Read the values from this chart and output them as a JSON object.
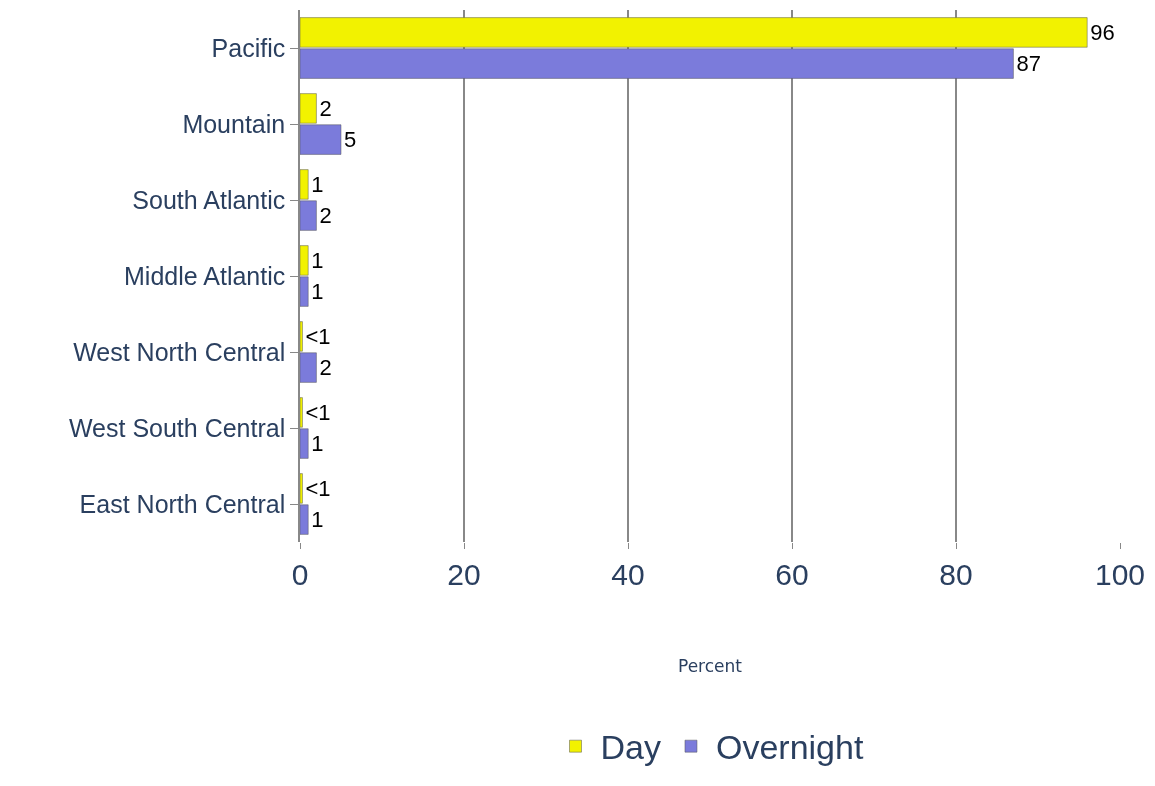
{
  "chart_data": {
    "type": "bar",
    "orientation": "horizontal",
    "xlabel": "Percent",
    "categories": [
      "Pacific",
      "Mountain",
      "South Atlantic",
      "Middle Atlantic",
      "West North Central",
      "West South Central",
      "East North Central"
    ],
    "series": [
      {
        "name": "Day",
        "color": "#f2f200",
        "values": [
          96,
          2,
          1,
          1,
          0.3,
          0.3,
          0.3
        ],
        "value_labels": [
          "96",
          "2",
          "1",
          "1",
          "<1",
          "<1",
          "<1"
        ]
      },
      {
        "name": "Overnight",
        "color": "#7b7bdb",
        "values": [
          87,
          5,
          2,
          1,
          2,
          1,
          1
        ],
        "value_labels": [
          "87",
          "5",
          "2",
          "1",
          "2",
          "1",
          "1"
        ]
      }
    ],
    "xlim": [
      0,
      100
    ],
    "xticks": [
      0,
      20,
      40,
      60,
      80,
      100
    ],
    "grid": "x",
    "legend": "bottom"
  }
}
